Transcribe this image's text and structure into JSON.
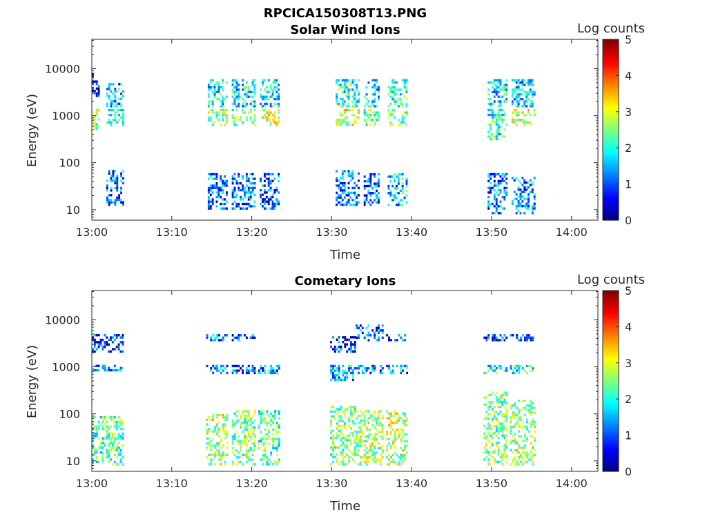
{
  "figure_title": "RPCICA150308T13.PNG",
  "chart_data": [
    {
      "type": "heatmap",
      "title": "Solar Wind Ions",
      "xlabel": "Time",
      "ylabel": "Energy (eV)",
      "x_ticks": [
        "13:00",
        "13:10",
        "13:20",
        "13:30",
        "13:40",
        "13:50",
        "14:00"
      ],
      "xlim_minutes": [
        0,
        63.3
      ],
      "y_scale": "log",
      "y_ticks": [
        10,
        100,
        1000,
        10000
      ],
      "y_tick_labels": [
        "10",
        "100",
        "1000",
        "10000"
      ],
      "ylim": [
        6,
        42000
      ],
      "colorbar": {
        "label": "Log counts",
        "range": [
          0,
          5
        ],
        "ticks": [
          "0",
          "1",
          "2",
          "3",
          "4",
          "5"
        ],
        "colormap": "jet"
      },
      "bursts": [
        {
          "t_start": 0.0,
          "t_end": 0.9,
          "bands": [
            {
              "e_min": 500,
              "e_max": 1400,
              "level": 2.6
            },
            {
              "e_min": 2500,
              "e_max": 8000,
              "level": 0.5
            }
          ]
        },
        {
          "t_start": 1.8,
          "t_end": 4.0,
          "bands": [
            {
              "e_min": 12,
              "e_max": 70,
              "level": 1.1
            },
            {
              "e_min": 600,
              "e_max": 1400,
              "level": 1.8
            },
            {
              "e_min": 1500,
              "e_max": 5000,
              "level": 1.5
            }
          ]
        },
        {
          "t_start": 14.5,
          "t_end": 17.0,
          "bands": [
            {
              "e_min": 10,
              "e_max": 60,
              "level": 1.1
            },
            {
              "e_min": 600,
              "e_max": 1400,
              "level": 2.6
            },
            {
              "e_min": 1500,
              "e_max": 6000,
              "level": 1.8
            }
          ]
        },
        {
          "t_start": 17.5,
          "t_end": 20.5,
          "bands": [
            {
              "e_min": 10,
              "e_max": 60,
              "level": 1.1
            },
            {
              "e_min": 600,
              "e_max": 1400,
              "level": 2.5
            },
            {
              "e_min": 1500,
              "e_max": 6000,
              "level": 1.8
            }
          ]
        },
        {
          "t_start": 21.0,
          "t_end": 23.5,
          "bands": [
            {
              "e_min": 10,
              "e_max": 60,
              "level": 1.0
            },
            {
              "e_min": 600,
              "e_max": 1400,
              "level": 2.9
            },
            {
              "e_min": 1500,
              "e_max": 6000,
              "level": 1.8
            }
          ]
        },
        {
          "t_start": 30.5,
          "t_end": 33.5,
          "bands": [
            {
              "e_min": 12,
              "e_max": 70,
              "level": 1.2
            },
            {
              "e_min": 600,
              "e_max": 1400,
              "level": 2.9
            },
            {
              "e_min": 1500,
              "e_max": 6000,
              "level": 2.0
            }
          ]
        },
        {
          "t_start": 34.0,
          "t_end": 36.0,
          "bands": [
            {
              "e_min": 12,
              "e_max": 60,
              "level": 1.1
            },
            {
              "e_min": 600,
              "e_max": 1400,
              "level": 2.3
            },
            {
              "e_min": 1500,
              "e_max": 6000,
              "level": 1.6
            }
          ]
        },
        {
          "t_start": 37.0,
          "t_end": 39.5,
          "bands": [
            {
              "e_min": 12,
              "e_max": 60,
              "level": 1.6
            },
            {
              "e_min": 600,
              "e_max": 1400,
              "level": 2.4
            },
            {
              "e_min": 1500,
              "e_max": 6000,
              "level": 2.2
            }
          ]
        },
        {
          "t_start": 49.5,
          "t_end": 52.0,
          "bands": [
            {
              "e_min": 8,
              "e_max": 60,
              "level": 1.3
            },
            {
              "e_min": 300,
              "e_max": 1400,
              "level": 2.1
            },
            {
              "e_min": 1500,
              "e_max": 6000,
              "level": 1.7
            }
          ]
        },
        {
          "t_start": 52.5,
          "t_end": 55.5,
          "bands": [
            {
              "e_min": 8,
              "e_max": 50,
              "level": 1.3
            },
            {
              "e_min": 600,
              "e_max": 1400,
              "level": 2.8
            },
            {
              "e_min": 1500,
              "e_max": 6000,
              "level": 1.6
            }
          ]
        }
      ]
    },
    {
      "type": "heatmap",
      "title": "Cometary Ions",
      "xlabel": "Time",
      "ylabel": "Energy (eV)",
      "x_ticks": [
        "13:00",
        "13:10",
        "13:20",
        "13:30",
        "13:40",
        "13:50",
        "14:00"
      ],
      "xlim_minutes": [
        0,
        63.3
      ],
      "y_scale": "log",
      "y_ticks": [
        10,
        100,
        1000,
        10000
      ],
      "y_tick_labels": [
        "10",
        "100",
        "1000",
        "10000"
      ],
      "ylim": [
        6,
        42000
      ],
      "colorbar": {
        "label": "Log counts",
        "range": [
          0,
          5
        ],
        "ticks": [
          "0",
          "1",
          "2",
          "3",
          "4",
          "5"
        ],
        "colormap": "jet"
      },
      "bursts": [
        {
          "t_start": 0.0,
          "t_end": 3.8,
          "bands": [
            {
              "e_min": 8,
              "e_max": 90,
              "level": 2.3
            },
            {
              "e_min": 800,
              "e_max": 1100,
              "level": 1.4
            },
            {
              "e_min": 2000,
              "e_max": 5000,
              "level": 0.8
            }
          ]
        },
        {
          "t_start": 14.3,
          "t_end": 17.0,
          "bands": [
            {
              "e_min": 8,
              "e_max": 100,
              "level": 2.7
            },
            {
              "e_min": 700,
              "e_max": 1100,
              "level": 1.3
            },
            {
              "e_min": 3500,
              "e_max": 5000,
              "level": 1.2
            }
          ]
        },
        {
          "t_start": 17.5,
          "t_end": 20.5,
          "bands": [
            {
              "e_min": 8,
              "e_max": 120,
              "level": 2.5
            },
            {
              "e_min": 700,
              "e_max": 1100,
              "level": 1.0
            },
            {
              "e_min": 3500,
              "e_max": 5000,
              "level": 0.8
            }
          ]
        },
        {
          "t_start": 20.8,
          "t_end": 23.5,
          "bands": [
            {
              "e_min": 8,
              "e_max": 120,
              "level": 2.3
            },
            {
              "e_min": 700,
              "e_max": 1100,
              "level": 1.4
            }
          ]
        },
        {
          "t_start": 29.8,
          "t_end": 33.0,
          "bands": [
            {
              "e_min": 8,
              "e_max": 150,
              "level": 2.5
            },
            {
              "e_min": 500,
              "e_max": 1100,
              "level": 1.6
            },
            {
              "e_min": 2000,
              "e_max": 4500,
              "level": 0.8
            }
          ]
        },
        {
          "t_start": 33.0,
          "t_end": 36.5,
          "bands": [
            {
              "e_min": 8,
              "e_max": 120,
              "level": 2.7
            },
            {
              "e_min": 700,
              "e_max": 1100,
              "level": 1.3
            },
            {
              "e_min": 3500,
              "e_max": 8000,
              "level": 1.0
            }
          ]
        },
        {
          "t_start": 36.8,
          "t_end": 39.5,
          "bands": [
            {
              "e_min": 8,
              "e_max": 120,
              "level": 2.8
            },
            {
              "e_min": 700,
              "e_max": 1100,
              "level": 1.5
            },
            {
              "e_min": 3500,
              "e_max": 5000,
              "level": 0.8
            }
          ]
        },
        {
          "t_start": 49.0,
          "t_end": 52.0,
          "bands": [
            {
              "e_min": 8,
              "e_max": 300,
              "level": 2.5
            },
            {
              "e_min": 700,
              "e_max": 1100,
              "level": 1.8
            },
            {
              "e_min": 3500,
              "e_max": 5000,
              "level": 0.8
            }
          ]
        },
        {
          "t_start": 52.3,
          "t_end": 55.5,
          "bands": [
            {
              "e_min": 8,
              "e_max": 200,
              "level": 2.6
            },
            {
              "e_min": 700,
              "e_max": 1100,
              "level": 1.9
            },
            {
              "e_min": 3500,
              "e_max": 5000,
              "level": 0.8
            }
          ]
        }
      ]
    }
  ]
}
